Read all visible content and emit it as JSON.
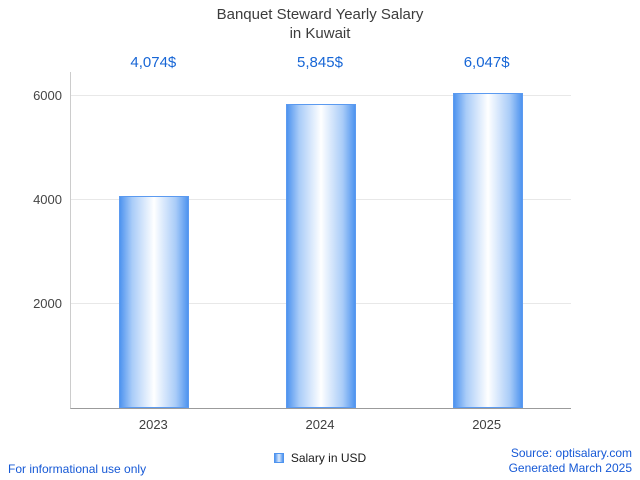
{
  "chart_data": {
    "type": "bar",
    "title": "Banquet Steward Yearly Salary in Kuwait",
    "title_lines": [
      "Banquet Steward Yearly Salary",
      "in Kuwait"
    ],
    "categories": [
      "2023",
      "2024",
      "2025"
    ],
    "values": [
      4074,
      5845,
      6047
    ],
    "value_labels": [
      "4,074$",
      "5,845$",
      "6,047$"
    ],
    "series": [
      {
        "name": "Salary in USD",
        "values": [
          4074,
          5845,
          6047
        ]
      }
    ],
    "xlabel": "",
    "ylabel": "",
    "y_ticks": [
      2000,
      4000,
      6000
    ],
    "ylim": [
      0,
      6460
    ],
    "grid": true,
    "legend_position": "bottom"
  },
  "legend": {
    "label": "Salary in USD"
  },
  "footer": {
    "left": "For informational use only",
    "source": "Source: optisalary.com",
    "generated": "Generated March 2025"
  },
  "colors": {
    "bar_edge": "#4f94ef",
    "bar_center": "#ffffff",
    "value_label_blue": "#1766d6",
    "footer_blue": "#1659d6",
    "title_gray": "#3c3c3c",
    "gridline_gray": "#e8e8e8"
  }
}
